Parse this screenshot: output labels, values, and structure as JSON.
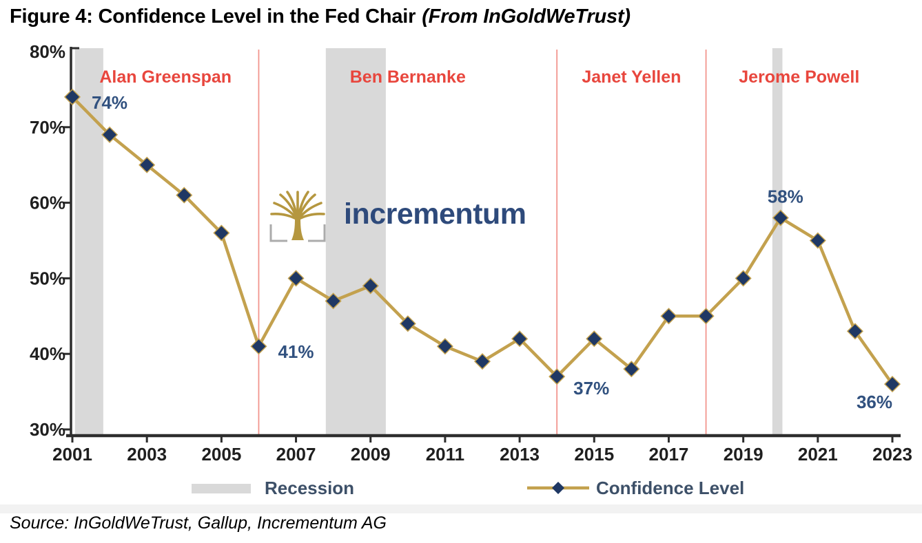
{
  "figure": {
    "title_main": "Figure 4: Confidence Level in the Fed Chair",
    "title_note": "(From InGoldWeTrust)",
    "source": "Source: InGoldWeTrust, Gallup, Incrementum AG"
  },
  "logo": {
    "text": "incrementum"
  },
  "legend": [
    {
      "label": "Recession"
    },
    {
      "label": "Confidence Level"
    }
  ],
  "colors": {
    "line_gold": "#C3A14E",
    "marker_navy": "#1F3864",
    "chair_red": "#E8463D",
    "divider_red": "#F2958D",
    "recession_gray": "#D9D9D9",
    "axis_dark": "#2D2D2D",
    "tick_label": "#1F1F1F",
    "point_label_navy": "#31517F",
    "legend_text": "#3D5068",
    "logo_gold": "#B5973F",
    "logo_navy": "#2E4A7B"
  },
  "chart_data": {
    "type": "line",
    "title": "Confidence Level in the Fed Chair",
    "x": [
      2001,
      2002,
      2003,
      2004,
      2005,
      2006,
      2007,
      2008,
      2009,
      2010,
      2011,
      2012,
      2013,
      2014,
      2015,
      2016,
      2017,
      2018,
      2019,
      2020,
      2021,
      2022,
      2023
    ],
    "series": [
      {
        "name": "Confidence Level",
        "values": [
          74,
          69,
          65,
          61,
          56,
          41,
          50,
          47,
          49,
          44,
          41,
          39,
          42,
          37,
          42,
          38,
          45,
          45,
          50,
          58,
          55,
          43,
          36
        ]
      }
    ],
    "ylim": [
      30,
      80
    ],
    "y_ticks": [
      30,
      40,
      50,
      60,
      70,
      80
    ],
    "y_tick_format": "percent",
    "x_tick_step": 2,
    "grid": false,
    "legend_position": "bottom",
    "point_labels": [
      {
        "year": 2001,
        "text": "74%",
        "placement": "right"
      },
      {
        "year": 2006,
        "text": "41%",
        "placement": "right"
      },
      {
        "year": 2014,
        "text": "37%",
        "placement": "below-right"
      },
      {
        "year": 2020,
        "text": "58%",
        "placement": "above"
      },
      {
        "year": 2023,
        "text": "36%",
        "placement": "below-left"
      }
    ],
    "chair_eras": [
      {
        "name": "Alan Greenspan",
        "start": 2001,
        "end": 2006
      },
      {
        "name": "Ben Bernanke",
        "start": 2006,
        "end": 2014
      },
      {
        "name": "Janet Yellen",
        "start": 2014,
        "end": 2018
      },
      {
        "name": "Jerome Powell",
        "start": 2018,
        "end": 2023
      }
    ],
    "divider_years": [
      2006,
      2014,
      2018
    ],
    "recessions": [
      {
        "start": 2001.07,
        "end": 2001.83
      },
      {
        "start": 2007.8,
        "end": 2009.41
      },
      {
        "start": 2019.78,
        "end": 2020.05
      }
    ]
  }
}
